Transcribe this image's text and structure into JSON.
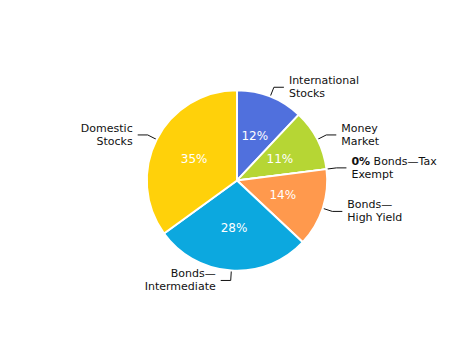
{
  "chart_data": {
    "type": "pie",
    "categories": [
      "International\nStocks",
      "Money\nMarket",
      "Bonds—Tax\nExempt",
      "Bonds—\nHigh Yield",
      "Bonds—\nIntermediate",
      "Domestic\nStocks"
    ],
    "values": [
      12,
      11,
      0,
      14,
      28,
      35
    ],
    "value_labels": [
      "12%",
      "11%",
      "0%",
      "14%",
      "28%",
      "35%"
    ],
    "data_labels": true
  }
}
